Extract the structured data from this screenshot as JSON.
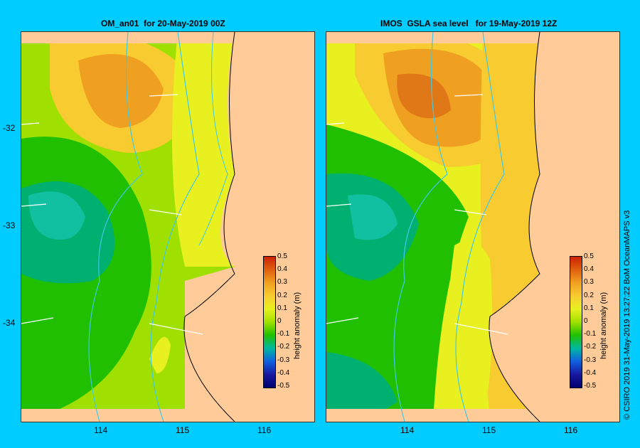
{
  "panels": [
    {
      "title": "OM_an01  for 20-May-2019 00Z"
    },
    {
      "title": "IMOS  GSLA sea level   for 19-May-2019 12Z"
    }
  ],
  "axes": {
    "x_ticks": [
      "114",
      "115",
      "116"
    ],
    "y_ticks": [
      "-32",
      "-33",
      "-34"
    ]
  },
  "colorbar": {
    "title": "height anomaly  (m)",
    "labels": [
      "0.5",
      "0.4",
      "0.3",
      "0.2",
      "0.1",
      "0",
      "-0.1",
      "-0.2",
      "-0.3",
      "-0.4",
      "-0.5"
    ],
    "colors": [
      "#cc2200",
      "#e06010",
      "#f0a020",
      "#f8cc30",
      "#e8f020",
      "#a0e000",
      "#20c000",
      "#00b8a0",
      "#1060e0",
      "#1818a0",
      "#000070"
    ]
  },
  "credit": "© CSIRO 2019   31-May-2019 13:27:22 BoM OceanMAPS v3"
}
